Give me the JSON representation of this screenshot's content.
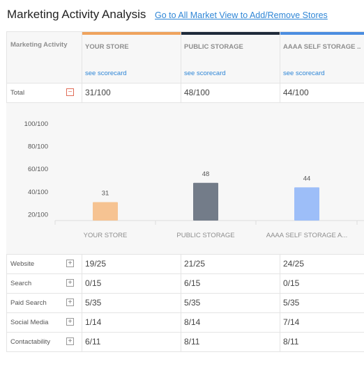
{
  "header": {
    "title": "Marketing Activity Analysis",
    "link": "Go to All Market View to Add/Remove Stores"
  },
  "table": {
    "first_column_label": "Marketing Activity",
    "scorecard_label": "see scorecard",
    "columns": [
      {
        "name": "YOUR STORE",
        "color": "#efa35d"
      },
      {
        "name": "PUBLIC STORAGE",
        "color": "#1f2a3a"
      },
      {
        "name": "AAAA SELF STORAGE ...",
        "color": "#4b8de0"
      }
    ],
    "total_row": {
      "label": "Total",
      "toggle": "−",
      "scores": [
        "31/100",
        "48/100",
        "44/100"
      ]
    },
    "rows": [
      {
        "label": "Website",
        "toggle": "+",
        "scores": [
          "19/25",
          "21/25",
          "24/25"
        ]
      },
      {
        "label": "Search",
        "toggle": "+",
        "scores": [
          "0/15",
          "6/15",
          "0/15"
        ]
      },
      {
        "label": "Paid Search",
        "toggle": "+",
        "scores": [
          "5/35",
          "5/35",
          "5/35"
        ]
      },
      {
        "label": "Social Media",
        "toggle": "+",
        "scores": [
          "1/14",
          "8/14",
          "7/14"
        ]
      },
      {
        "label": "Contactability",
        "toggle": "+",
        "scores": [
          "6/11",
          "8/11",
          "8/11"
        ]
      }
    ]
  },
  "chart_data": {
    "type": "bar",
    "categories": [
      "YOUR STORE",
      "PUBLIC STORAGE",
      "AAAA SELF STORAGE A..."
    ],
    "values": [
      31,
      48,
      44
    ],
    "colors": [
      "#f6c392",
      "#737c89",
      "#9dbef8"
    ],
    "yticks": [
      "100/100",
      "80/100",
      "60/100",
      "40/100",
      "20/100"
    ],
    "ylim": [
      0,
      100
    ],
    "grid": false
  }
}
